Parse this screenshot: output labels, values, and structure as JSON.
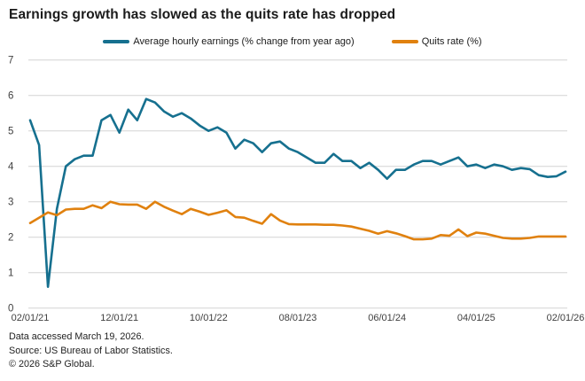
{
  "page": {
    "title": "Earnings growth has slowed as the quits rate has dropped"
  },
  "footer": {
    "accessed": "Data accessed March 19, 2026.",
    "source": "Source: US Bureau of Labor Statistics.",
    "copyright": "© 2026 S&P Global."
  },
  "colors": {
    "earnings_line": "#16708F",
    "quits_line": "#E0810F",
    "gridline": "#D4D4D4",
    "axis_text": "#404040",
    "title_text": "#1A1A1A"
  },
  "chart_data": {
    "type": "line",
    "title": "Earnings growth has slowed as the quits rate has dropped",
    "xlabel": "",
    "ylabel": "",
    "ylim": [
      0,
      7
    ],
    "y_ticks": [
      0,
      1,
      2,
      3,
      4,
      5,
      6,
      7
    ],
    "grid": "horizontal",
    "legend_position": "top",
    "x_is_monthly_index": true,
    "x_points": 61,
    "x_tick_labels": [
      "02/01/21",
      "12/01/21",
      "10/01/22",
      "08/01/23",
      "06/01/24",
      "04/01/25",
      "02/01/26"
    ],
    "x_tick_month_indices": [
      0,
      10,
      20,
      30,
      40,
      50,
      60
    ],
    "series": [
      {
        "name": "Average hourly earnings (% change from year ago)",
        "color": "#16708F",
        "values": [
          5.3,
          4.6,
          0.6,
          2.8,
          4.0,
          4.2,
          4.3,
          4.3,
          5.3,
          5.45,
          4.95,
          5.6,
          5.3,
          5.9,
          5.8,
          5.55,
          5.4,
          5.5,
          5.35,
          5.15,
          5.0,
          5.1,
          4.95,
          4.5,
          4.75,
          4.65,
          4.4,
          4.65,
          4.7,
          4.5,
          4.4,
          4.25,
          4.1,
          4.1,
          4.35,
          4.15,
          4.15,
          3.95,
          4.1,
          3.9,
          3.65,
          3.9,
          3.9,
          4.05,
          4.15,
          4.15,
          4.05,
          4.15,
          4.25,
          4.0,
          4.05,
          3.95,
          4.05,
          4.0,
          3.9,
          3.95,
          3.92,
          3.75,
          3.7,
          3.72,
          3.85
        ]
      },
      {
        "name": "Quits rate (%)",
        "color": "#E0810F",
        "values": [
          2.4,
          2.55,
          2.7,
          2.62,
          2.78,
          2.8,
          2.8,
          2.9,
          2.82,
          3.0,
          2.93,
          2.92,
          2.92,
          2.8,
          3.0,
          2.86,
          2.75,
          2.65,
          2.8,
          2.72,
          2.63,
          2.69,
          2.76,
          2.57,
          2.55,
          2.46,
          2.38,
          2.65,
          2.47,
          2.37,
          2.36,
          2.36,
          2.36,
          2.35,
          2.35,
          2.33,
          2.3,
          2.24,
          2.18,
          2.1,
          2.17,
          2.11,
          2.03,
          1.94,
          1.94,
          1.96,
          2.06,
          2.04,
          2.22,
          2.03,
          2.13,
          2.1,
          2.04,
          1.98,
          1.96,
          1.96,
          1.98,
          2.02,
          2.02,
          2.02,
          2.02
        ]
      }
    ]
  }
}
